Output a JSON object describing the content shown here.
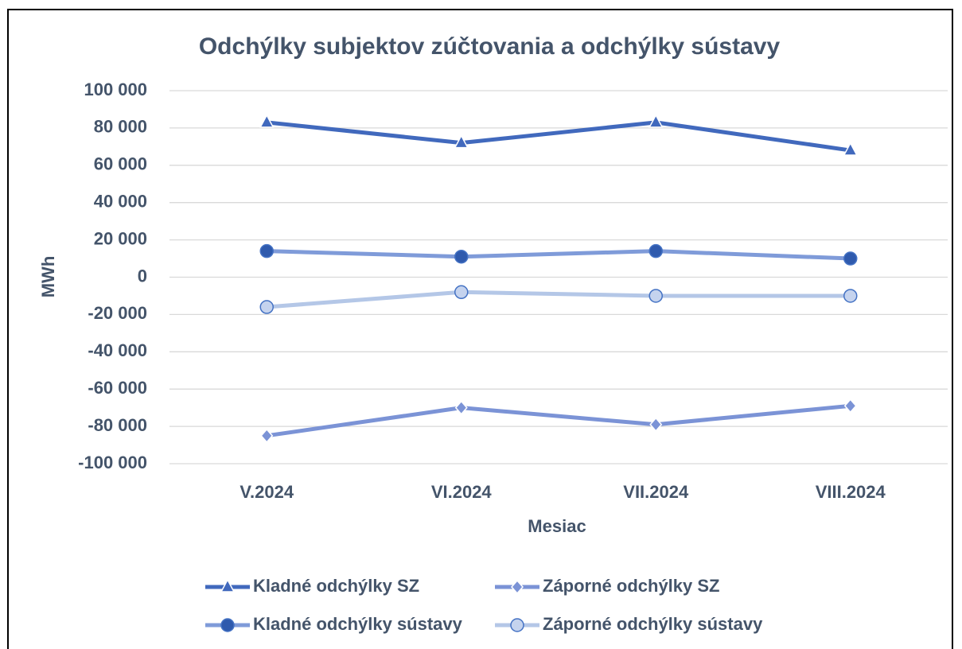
{
  "chart_data": {
    "type": "line",
    "title": "Odchýlky subjektov zúčtovania a odchýlky sústavy",
    "xlabel": "Mesiac",
    "ylabel": "MWh",
    "categories": [
      "V.2024",
      "VI.2024",
      "VII.2024",
      "VIII.2024"
    ],
    "series": [
      {
        "name": "Kladné odchýlky SZ",
        "color": "#4169bd",
        "marker": "triangle",
        "marker_color": "#4169bd",
        "values": [
          83000,
          72000,
          83000,
          68000
        ]
      },
      {
        "name": "Záporné odchýlky SZ",
        "color": "#7b93d6",
        "marker": "diamond",
        "marker_color": "#7b93d6",
        "values": [
          -85000,
          -70000,
          -79000,
          -69000
        ]
      },
      {
        "name": "Kladné odchýlky sústavy",
        "color": "#7f9bd9",
        "marker": "circle",
        "marker_color": "#2f5aad",
        "values": [
          14000,
          11000,
          14000,
          10000
        ]
      },
      {
        "name": "Záporné odchýlky sústavy",
        "color": "#b4c7e7",
        "marker": "circle",
        "marker_color": "#c5d3ee",
        "values": [
          -16000,
          -8000,
          -10000,
          -10000
        ]
      }
    ],
    "ylim": [
      -100000,
      100000
    ],
    "yticks": [
      {
        "value": -100000,
        "label": "-100 000"
      },
      {
        "value": -80000,
        "label": "-80 000"
      },
      {
        "value": -60000,
        "label": "-60 000"
      },
      {
        "value": -40000,
        "label": "-40 000"
      },
      {
        "value": -20000,
        "label": "-20 000"
      },
      0,
      {
        "value": 20000,
        "label": "20 000"
      },
      {
        "value": 40000,
        "label": "40 000"
      },
      {
        "value": 60000,
        "label": "60 000"
      },
      {
        "value": 80000,
        "label": "80 000"
      },
      {
        "value": 100000,
        "label": "100 000"
      }
    ],
    "grid": true,
    "legend": "bottom"
  }
}
